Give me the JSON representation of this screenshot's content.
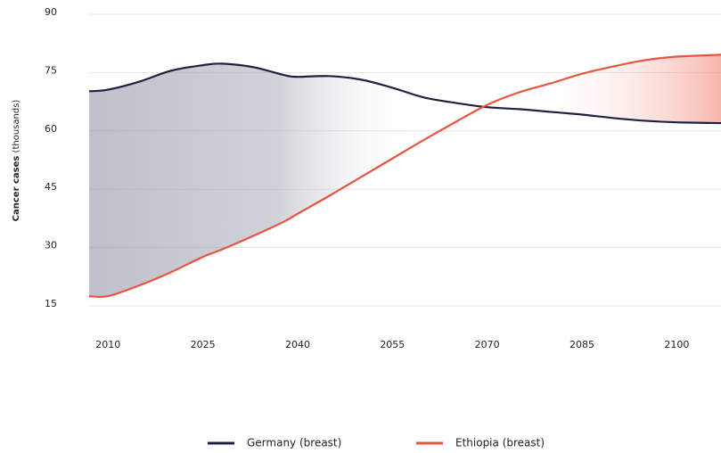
{
  "chart_data": {
    "type": "line",
    "y_label_bold": "Cancer cases",
    "y_label_rest": "(thousands)",
    "x": [
      2007,
      2010,
      2015,
      2020,
      2025,
      2028,
      2033,
      2038,
      2040,
      2045,
      2050,
      2055,
      2060,
      2065,
      2070,
      2075,
      2080,
      2085,
      2090,
      2095,
      2100,
      2107
    ],
    "series": [
      {
        "name": "Germany (breast)",
        "color": "#1e2240",
        "values": [
          70.2,
          70.6,
          72.7,
          75.5,
          76.9,
          77.3,
          76.4,
          74.3,
          73.9,
          74.1,
          73.2,
          71.1,
          68.6,
          67.2,
          66.1,
          65.6,
          64.9,
          64.2,
          63.3,
          62.6,
          62.2,
          62.0
        ]
      },
      {
        "name": "Ethiopia (breast)",
        "color": "#e8543f",
        "values": [
          17.5,
          17.5,
          20.3,
          23.7,
          27.6,
          29.5,
          33.0,
          36.8,
          38.7,
          43.3,
          48.1,
          52.9,
          57.7,
          62.3,
          66.7,
          69.9,
          72.2,
          74.7,
          76.6,
          78.2,
          79.1,
          79.6
        ]
      }
    ],
    "xlim": [
      2007,
      2107
    ],
    "ylim": [
      15,
      90
    ],
    "xticks": [
      2010,
      2025,
      2040,
      2055,
      2070,
      2085,
      2100
    ],
    "yticks": [
      15,
      30,
      45,
      60,
      75,
      90
    ],
    "grid": true
  }
}
